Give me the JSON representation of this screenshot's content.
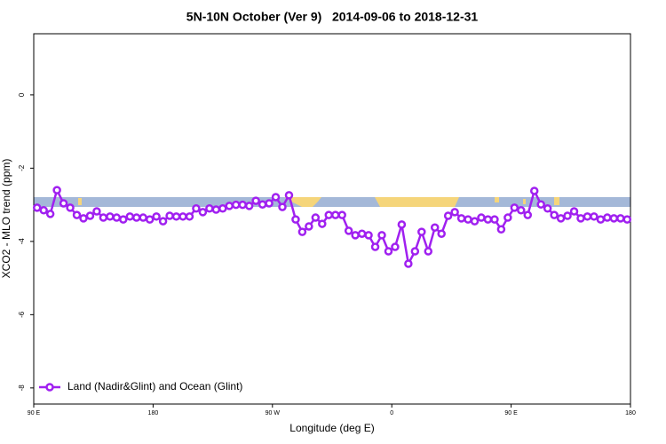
{
  "chart_data": {
    "type": "line",
    "title": "5N-10N October (Ver 9)   2014-09-06 to 2018-12-31",
    "x_label": "Longitude (deg E)",
    "y_label": "XCO2 - MLO trend (ppm)",
    "xlim": [
      90,
      540
    ],
    "xticks": [
      {
        "value": 90,
        "label": "90 E"
      },
      {
        "value": 180,
        "label": "180"
      },
      {
        "value": 270,
        "label": "90 W"
      },
      {
        "value": 360,
        "label": "0"
      },
      {
        "value": 450,
        "label": "90 E"
      },
      {
        "value": 540,
        "label": "180"
      }
    ],
    "ylim": [
      -8.44,
      1.67
    ],
    "yticks": [
      0,
      -2,
      -4,
      -6,
      -8
    ],
    "legend": "bottom-left",
    "x": [
      92.5,
      97.5,
      102.5,
      107.5,
      112.5,
      117.5,
      122.5,
      127.5,
      132.5,
      137.5,
      142.5,
      147.5,
      152.5,
      157.5,
      162.5,
      167.5,
      172.5,
      177.5,
      182.5,
      187.5,
      192.5,
      197.5,
      202.5,
      207.5,
      212.5,
      217.5,
      222.5,
      227.5,
      232.5,
      237.5,
      242.5,
      247.5,
      252.5,
      257.5,
      262.5,
      267.5,
      272.5,
      277.5,
      282.5,
      287.5,
      292.5,
      297.5,
      302.5,
      307.5,
      312.5,
      317.5,
      322.5,
      327.5,
      332.5,
      337.5,
      342.5,
      347.5,
      352.5,
      357.5,
      362.5,
      367.5,
      372.5,
      377.5,
      382.5,
      387.5,
      392.5,
      397.5,
      402.5,
      407.5,
      412.5,
      417.5,
      422.5,
      427.5,
      432.5,
      437.5,
      442.5,
      447.5,
      452.5,
      457.5,
      462.5,
      467.5,
      472.5,
      477.5,
      482.5,
      487.5,
      492.5,
      497.5,
      502.5,
      507.5,
      512.5,
      517.5,
      522.5,
      527.5,
      532.5,
      537.5
    ],
    "series": [
      {
        "name": "Land (Nadir&Glint) and Ocean (Glint)",
        "color": "#a020f0",
        "values": [
          -3.08,
          -3.15,
          -3.25,
          -2.6,
          -2.96,
          -3.08,
          -3.28,
          -3.37,
          -3.3,
          -3.18,
          -3.35,
          -3.32,
          -3.35,
          -3.4,
          -3.32,
          -3.35,
          -3.35,
          -3.4,
          -3.32,
          -3.45,
          -3.3,
          -3.32,
          -3.32,
          -3.32,
          -3.1,
          -3.2,
          -3.1,
          -3.13,
          -3.1,
          -3.03,
          -3.0,
          -3.0,
          -3.03,
          -2.89,
          -2.99,
          -2.96,
          -2.79,
          -3.06,
          -2.74,
          -3.4,
          -3.74,
          -3.59,
          -3.35,
          -3.52,
          -3.28,
          -3.28,
          -3.28,
          -3.71,
          -3.83,
          -3.79,
          -3.83,
          -4.15,
          -3.83,
          -4.27,
          -4.15,
          -3.54,
          -4.61,
          -4.27,
          -3.74,
          -4.27,
          -3.62,
          -3.79,
          -3.3,
          -3.2,
          -3.37,
          -3.4,
          -3.45,
          -3.35,
          -3.4,
          -3.4,
          -3.67,
          -3.35,
          -3.08,
          -3.15,
          -3.28,
          -2.62,
          -2.99,
          -3.1,
          -3.28,
          -3.37,
          -3.3,
          -3.18,
          -3.37,
          -3.32,
          -3.32,
          -3.4,
          -3.35,
          -3.37,
          -3.37,
          -3.4
        ]
      }
    ]
  }
}
